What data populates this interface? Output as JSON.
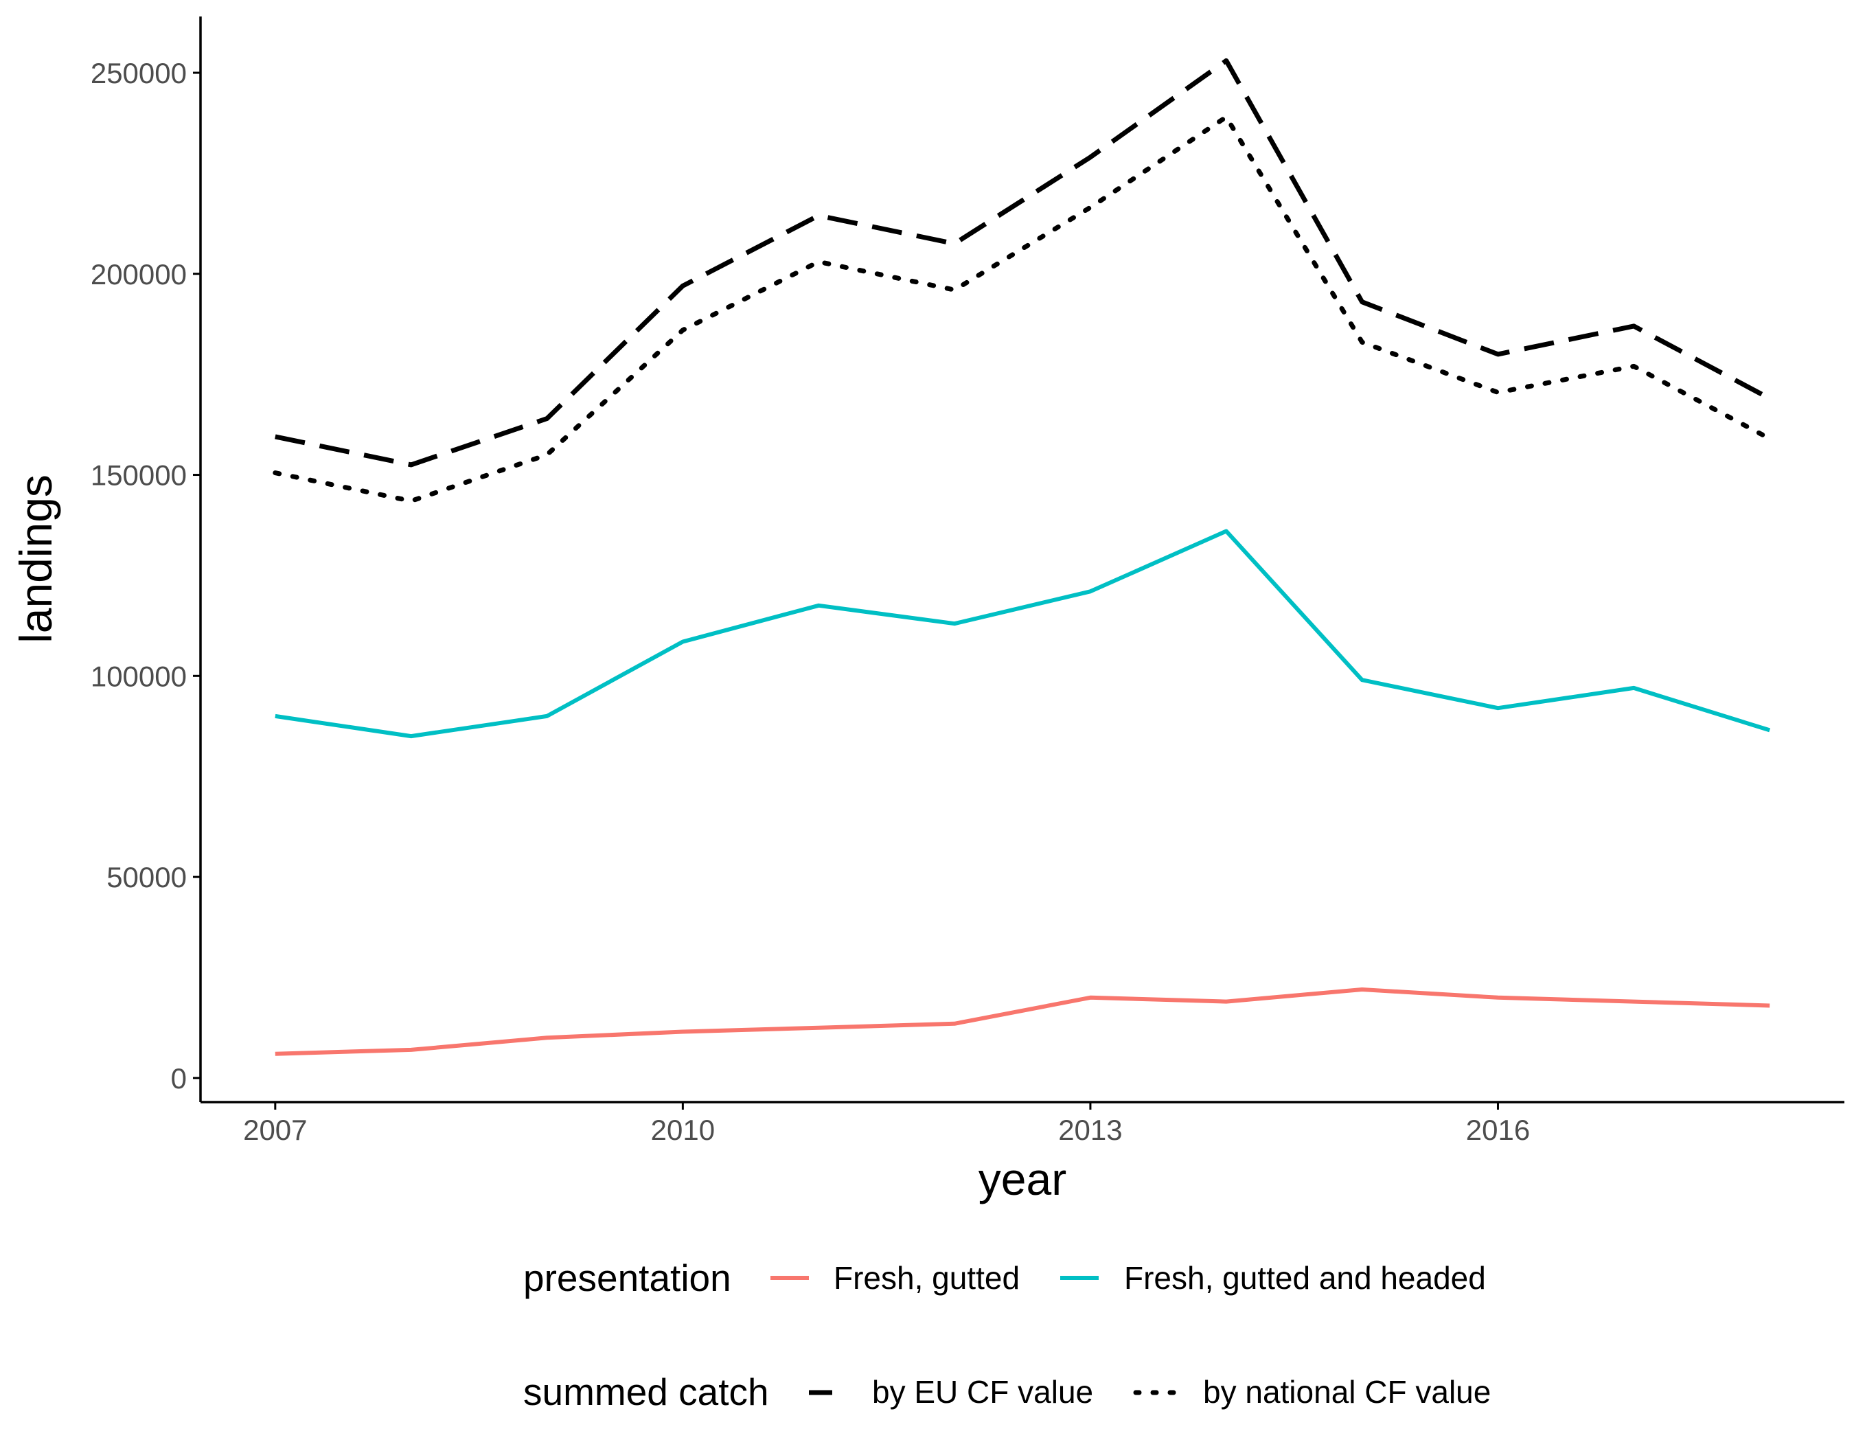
{
  "chart_data": {
    "type": "line",
    "xlabel": "year",
    "ylabel": "landings",
    "x": [
      2007,
      2008,
      2009,
      2010,
      2011,
      2012,
      2013,
      2014,
      2015,
      2016,
      2017,
      2018
    ],
    "x_ticks": [
      "2007",
      "2010",
      "2013",
      "2016"
    ],
    "y_ticks": [
      "0",
      "50000",
      "100000",
      "150000",
      "200000",
      "250000"
    ],
    "xlim": [
      2006.45,
      2018.55
    ],
    "ylim": [
      -6000,
      264000
    ],
    "grid": false,
    "legend_position": "bottom",
    "presentation": {
      "title": "presentation",
      "series": [
        {
          "name": "Fresh, gutted",
          "color": "#F8766D",
          "values": [
            6000,
            7000,
            10000,
            11500,
            12500,
            13500,
            20000,
            19000,
            22000,
            20000,
            19000,
            18000
          ]
        },
        {
          "name": "Fresh, gutted and headed",
          "color": "#00BFC4",
          "values": [
            90000,
            85000,
            90000,
            108500,
            117500,
            113000,
            121000,
            136000,
            99000,
            92000,
            97000,
            86500
          ]
        }
      ]
    },
    "summed_catch": {
      "title": "summed catch",
      "series": [
        {
          "name": "by EU CF value",
          "style": "dashed",
          "color": "#000000",
          "values": [
            159500,
            152500,
            164000,
            197000,
            214500,
            207500,
            229000,
            253000,
            193000,
            180000,
            187000,
            169000
          ]
        },
        {
          "name": "by national CF value",
          "style": "dotted",
          "color": "#000000",
          "values": [
            150500,
            143500,
            155000,
            186000,
            203000,
            196000,
            216500,
            239000,
            183000,
            170500,
            177000,
            159000
          ]
        }
      ]
    }
  }
}
